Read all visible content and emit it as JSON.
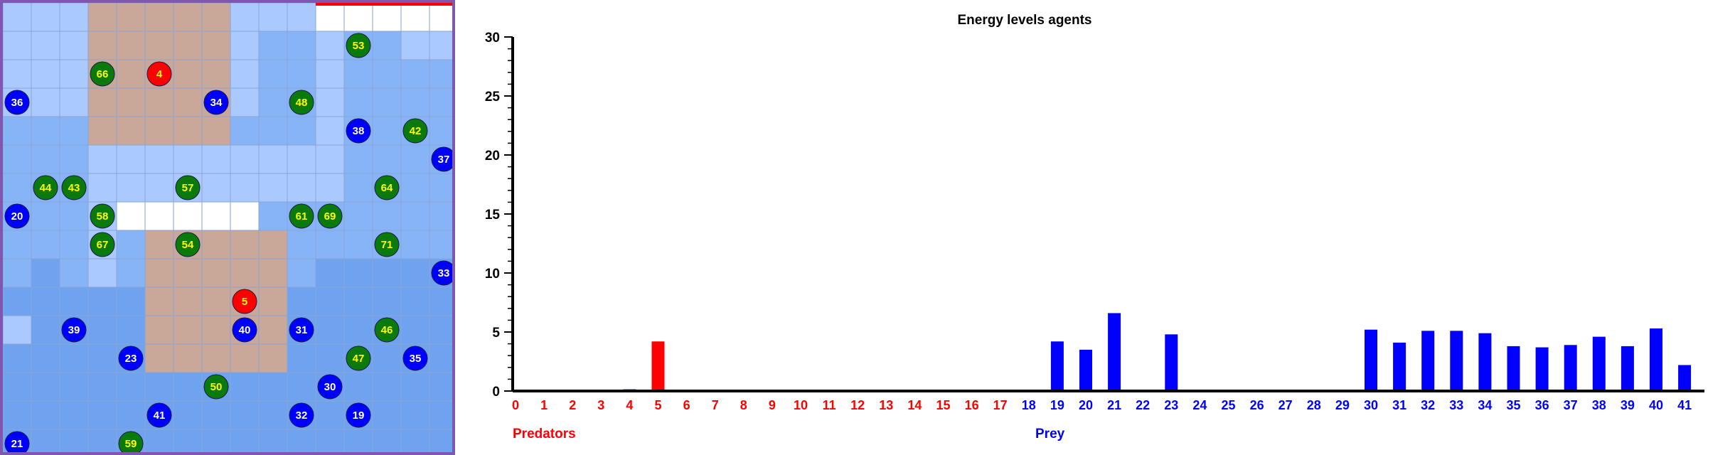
{
  "colors": {
    "predator": "#ff0000",
    "prey": "#0000ff",
    "food_agent": "#0a7a0a",
    "food_agent_text": "#ffff00",
    "grid_line": "#8aa3d4",
    "panel_border": "#7f57b0",
    "top_border": "#ff0000",
    "zone": "#c9a89a",
    "cell_white": "#ffffff",
    "cell_light": "#a9c9ff",
    "cell_mid": "#86b4f7",
    "cell_dark": "#6fa3ef"
  },
  "grid": {
    "cols": 16,
    "rows": 16,
    "rows_data": [
      "LLLZZZZZLLLWWWWW",
      "LLLZZZZZLMMLMMLL",
      "LLLZZZZZLMMLMMMM",
      "LLLZZZZZLMMLMMMM",
      "MMMZZZZZMMMLMMMM",
      "MMMLLLLLLLLLMMMM",
      "MMMLLLLLLLLLMMMM",
      "MMMLWWWWWMMMMMMM",
      "MMMLMZZZZZMMMMMM",
      "MDMLMZZZZZMDDDDD",
      "DDDDDZZZZZDDDDDD",
      "LDDDDZZZZZDDDDDD",
      "DDDDDZZZZZDDDDDD",
      "DDDDDDDDDDDDDDDD",
      "DDDDDDDDDDDDDDDD",
      "DDDDDDDDDDDDDDDD"
    ],
    "agents": [
      {
        "id": "53",
        "type": "food",
        "col": 12,
        "row": 1
      },
      {
        "id": "66",
        "type": "food",
        "col": 3,
        "row": 2
      },
      {
        "id": "4",
        "type": "predator",
        "col": 5,
        "row": 2
      },
      {
        "id": "36",
        "type": "prey",
        "col": 0,
        "row": 3
      },
      {
        "id": "34",
        "type": "prey",
        "col": 7,
        "row": 3
      },
      {
        "id": "48",
        "type": "food",
        "col": 10,
        "row": 3
      },
      {
        "id": "38",
        "type": "prey",
        "col": 12,
        "row": 4
      },
      {
        "id": "42",
        "type": "food",
        "col": 14,
        "row": 4
      },
      {
        "id": "37",
        "type": "prey",
        "col": 15,
        "row": 5
      },
      {
        "id": "44",
        "type": "food",
        "col": 1,
        "row": 6
      },
      {
        "id": "43",
        "type": "food",
        "col": 2,
        "row": 6
      },
      {
        "id": "57",
        "type": "food",
        "col": 6,
        "row": 6
      },
      {
        "id": "64",
        "type": "food",
        "col": 13,
        "row": 6
      },
      {
        "id": "20",
        "type": "prey",
        "col": 0,
        "row": 7
      },
      {
        "id": "58",
        "type": "food",
        "col": 3,
        "row": 7
      },
      {
        "id": "61",
        "type": "food",
        "col": 10,
        "row": 7
      },
      {
        "id": "69",
        "type": "food",
        "col": 11,
        "row": 7
      },
      {
        "id": "67",
        "type": "food",
        "col": 3,
        "row": 8
      },
      {
        "id": "54",
        "type": "food",
        "col": 6,
        "row": 8
      },
      {
        "id": "71",
        "type": "food",
        "col": 13,
        "row": 8
      },
      {
        "id": "33",
        "type": "prey",
        "col": 15,
        "row": 9
      },
      {
        "id": "5",
        "type": "predator",
        "col": 8,
        "row": 10
      },
      {
        "id": "39",
        "type": "prey",
        "col": 2,
        "row": 11
      },
      {
        "id": "40",
        "type": "prey",
        "col": 8,
        "row": 11
      },
      {
        "id": "31",
        "type": "prey",
        "col": 10,
        "row": 11
      },
      {
        "id": "46",
        "type": "food",
        "col": 13,
        "row": 11
      },
      {
        "id": "23",
        "type": "prey",
        "col": 4,
        "row": 12
      },
      {
        "id": "47",
        "type": "food",
        "col": 12,
        "row": 12
      },
      {
        "id": "35",
        "type": "prey",
        "col": 14,
        "row": 12
      },
      {
        "id": "50",
        "type": "food",
        "col": 7,
        "row": 13
      },
      {
        "id": "30",
        "type": "prey",
        "col": 11,
        "row": 13
      },
      {
        "id": "41",
        "type": "prey",
        "col": 5,
        "row": 14
      },
      {
        "id": "32",
        "type": "prey",
        "col": 10,
        "row": 14
      },
      {
        "id": "19",
        "type": "prey",
        "col": 12,
        "row": 14
      },
      {
        "id": "21",
        "type": "prey",
        "col": 0,
        "row": 15
      },
      {
        "id": "59",
        "type": "food",
        "col": 4,
        "row": 15
      }
    ]
  },
  "chart_data": {
    "type": "bar",
    "title": "Energy levels agents",
    "ylim": [
      0,
      30
    ],
    "y_ticks": [
      "0",
      "5",
      "10",
      "15",
      "20",
      "25",
      "30"
    ],
    "categories": [
      "0",
      "1",
      "2",
      "3",
      "4",
      "5",
      "6",
      "7",
      "8",
      "9",
      "10",
      "11",
      "12",
      "13",
      "14",
      "15",
      "16",
      "17",
      "18",
      "19",
      "20",
      "21",
      "22",
      "23",
      "24",
      "25",
      "26",
      "27",
      "28",
      "29",
      "30",
      "31",
      "32",
      "33",
      "34",
      "35",
      "36",
      "37",
      "38",
      "39",
      "40",
      "41"
    ],
    "category_colors": [
      "red",
      "red",
      "red",
      "red",
      "red",
      "red",
      "red",
      "red",
      "red",
      "red",
      "red",
      "red",
      "red",
      "red",
      "red",
      "red",
      "red",
      "red",
      "blue",
      "blue",
      "blue",
      "blue",
      "blue",
      "blue",
      "blue",
      "blue",
      "blue",
      "blue",
      "blue",
      "blue",
      "blue",
      "blue",
      "blue",
      "blue",
      "blue",
      "blue",
      "blue",
      "blue",
      "blue",
      "blue",
      "blue",
      "blue"
    ],
    "values": [
      0,
      0,
      0,
      0,
      0.15,
      4.2,
      0,
      0,
      0,
      0,
      0,
      0,
      0,
      0,
      0,
      0,
      0,
      0,
      0,
      4.2,
      3.5,
      6.6,
      0,
      4.8,
      0,
      0,
      0,
      0,
      0,
      0,
      5.2,
      4.1,
      5.1,
      5.1,
      4.9,
      3.8,
      3.7,
      3.9,
      4.6,
      3.8,
      5.3,
      2.2
    ],
    "groups": [
      {
        "label": "Predators",
        "color": "#ff0000"
      },
      {
        "label": "Prey",
        "color": "#0000ff"
      }
    ]
  }
}
